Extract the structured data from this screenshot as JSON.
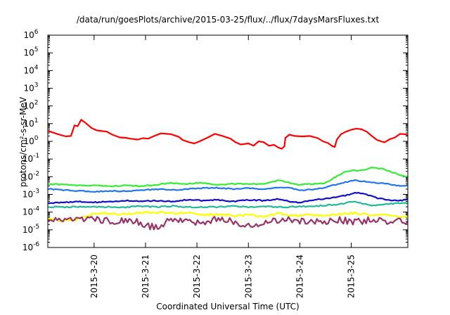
{
  "chart_data": {
    "type": "line",
    "title": "/data/run/goesPlots/archive/2015-03-25/flux/../flux/7daysMarsFluxes.txt",
    "xlabel": "Coordinated Universal Time (UTC)",
    "ylabel": "protons/cm²-s-sr-MeV",
    "yscale": "log",
    "ylim_exp": [
      -6,
      6
    ],
    "x_ticks": [
      {
        "label": "2015-3-20",
        "day": 1
      },
      {
        "label": "2015-3-21",
        "day": 2
      },
      {
        "label": "2015-3-22",
        "day": 3
      },
      {
        "label": "2015-3-23",
        "day": 4
      },
      {
        "label": "2015-3-24",
        "day": 5
      },
      {
        "label": "2015-3-25",
        "day": 6
      }
    ],
    "xlim_day": [
      0.1,
      7.1
    ],
    "series": [
      {
        "color": "#ff0000",
        "noise": 0,
        "points": [
          [
            0.1,
            0.6
          ],
          [
            0.3,
            0.4
          ],
          [
            0.45,
            0.28
          ],
          [
            0.55,
            0.3
          ],
          [
            0.62,
            0.9
          ],
          [
            0.68,
            0.85
          ],
          [
            0.75,
            1.22
          ],
          [
            0.85,
            1.0
          ],
          [
            0.95,
            0.75
          ],
          [
            1.05,
            0.62
          ],
          [
            1.15,
            0.58
          ],
          [
            1.25,
            0.55
          ],
          [
            1.35,
            0.38
          ],
          [
            1.5,
            0.22
          ],
          [
            1.62,
            0.2
          ],
          [
            1.7,
            0.15
          ],
          [
            1.85,
            0.1
          ],
          [
            1.95,
            0.18
          ],
          [
            2.05,
            0.15
          ],
          [
            2.15,
            0.28
          ],
          [
            2.3,
            0.45
          ],
          [
            2.5,
            0.4
          ],
          [
            2.65,
            0.25
          ],
          [
            2.72,
            0.08
          ],
          [
            2.85,
            -0.05
          ],
          [
            2.95,
            -0.12
          ],
          [
            3.05,
            0.0
          ],
          [
            3.2,
            0.2
          ],
          [
            3.35,
            0.42
          ],
          [
            3.5,
            0.3
          ],
          [
            3.65,
            0.15
          ],
          [
            3.75,
            -0.05
          ],
          [
            3.85,
            -0.18
          ],
          [
            4.0,
            -0.12
          ],
          [
            4.1,
            -0.25
          ],
          [
            4.2,
            0.0
          ],
          [
            4.3,
            -0.05
          ],
          [
            4.4,
            -0.25
          ],
          [
            4.5,
            -0.2
          ],
          [
            4.58,
            -0.35
          ],
          [
            4.65,
            -0.42
          ],
          [
            4.7,
            -0.28
          ],
          [
            4.72,
            0.2
          ],
          [
            4.8,
            0.38
          ],
          [
            4.9,
            0.3
          ],
          [
            5.05,
            0.28
          ],
          [
            5.2,
            0.3
          ],
          [
            5.35,
            0.18
          ],
          [
            5.45,
            0.0
          ],
          [
            5.55,
            -0.1
          ],
          [
            5.62,
            -0.25
          ],
          [
            5.68,
            -0.32
          ],
          [
            5.72,
            0.1
          ],
          [
            5.8,
            0.4
          ],
          [
            5.9,
            0.55
          ],
          [
            6.0,
            0.65
          ],
          [
            6.1,
            0.72
          ],
          [
            6.2,
            0.68
          ],
          [
            6.3,
            0.55
          ],
          [
            6.4,
            0.3
          ],
          [
            6.5,
            0.08
          ],
          [
            6.6,
            -0.02
          ],
          [
            6.65,
            -0.05
          ],
          [
            6.75,
            0.12
          ],
          [
            6.85,
            0.22
          ],
          [
            6.95,
            0.42
          ],
          [
            7.05,
            0.4
          ],
          [
            7.1,
            0.35
          ]
        ]
      },
      {
        "color": "#33ee33",
        "noise": 0.03,
        "points": [
          [
            0.1,
            -2.4
          ],
          [
            0.4,
            -2.45
          ],
          [
            0.7,
            -2.5
          ],
          [
            1.0,
            -2.48
          ],
          [
            1.3,
            -2.55
          ],
          [
            1.6,
            -2.48
          ],
          [
            1.9,
            -2.55
          ],
          [
            2.2,
            -2.45
          ],
          [
            2.5,
            -2.35
          ],
          [
            2.8,
            -2.4
          ],
          [
            3.1,
            -2.35
          ],
          [
            3.4,
            -2.45
          ],
          [
            3.7,
            -2.4
          ],
          [
            4.0,
            -2.42
          ],
          [
            4.3,
            -2.4
          ],
          [
            4.6,
            -2.2
          ],
          [
            4.75,
            -2.3
          ],
          [
            5.0,
            -2.45
          ],
          [
            5.3,
            -2.4
          ],
          [
            5.5,
            -2.35
          ],
          [
            5.7,
            -2.0
          ],
          [
            5.9,
            -1.7
          ],
          [
            6.0,
            -1.65
          ],
          [
            6.2,
            -1.65
          ],
          [
            6.4,
            -1.5
          ],
          [
            6.6,
            -1.55
          ],
          [
            6.8,
            -1.75
          ],
          [
            7.0,
            -1.95
          ],
          [
            7.1,
            -2.0
          ]
        ]
      },
      {
        "color": "#2277ee",
        "noise": 0.03,
        "points": [
          [
            0.1,
            -2.7
          ],
          [
            0.4,
            -2.75
          ],
          [
            0.7,
            -2.8
          ],
          [
            1.0,
            -2.85
          ],
          [
            1.3,
            -2.8
          ],
          [
            1.6,
            -2.82
          ],
          [
            1.9,
            -2.78
          ],
          [
            2.2,
            -2.7
          ],
          [
            2.5,
            -2.75
          ],
          [
            2.8,
            -2.7
          ],
          [
            3.1,
            -2.65
          ],
          [
            3.4,
            -2.62
          ],
          [
            3.7,
            -2.7
          ],
          [
            4.0,
            -2.65
          ],
          [
            4.3,
            -2.7
          ],
          [
            4.6,
            -2.6
          ],
          [
            4.8,
            -2.62
          ],
          [
            5.0,
            -2.78
          ],
          [
            5.3,
            -2.7
          ],
          [
            5.5,
            -2.6
          ],
          [
            5.7,
            -2.45
          ],
          [
            5.9,
            -2.3
          ],
          [
            6.1,
            -2.2
          ],
          [
            6.3,
            -2.3
          ],
          [
            6.5,
            -2.35
          ],
          [
            6.7,
            -2.4
          ],
          [
            6.9,
            -2.5
          ],
          [
            7.1,
            -2.5
          ]
        ]
      },
      {
        "color": "#1111cc",
        "noise": 0.03,
        "points": [
          [
            0.1,
            -3.5
          ],
          [
            0.4,
            -3.45
          ],
          [
            0.7,
            -3.4
          ],
          [
            1.0,
            -3.45
          ],
          [
            1.3,
            -3.4
          ],
          [
            1.6,
            -3.35
          ],
          [
            1.9,
            -3.4
          ],
          [
            2.2,
            -3.35
          ],
          [
            2.5,
            -3.4
          ],
          [
            2.8,
            -3.3
          ],
          [
            3.1,
            -3.35
          ],
          [
            3.4,
            -3.3
          ],
          [
            3.7,
            -3.4
          ],
          [
            4.0,
            -3.3
          ],
          [
            4.3,
            -3.35
          ],
          [
            4.6,
            -3.25
          ],
          [
            4.8,
            -3.4
          ],
          [
            5.0,
            -3.45
          ],
          [
            5.3,
            -3.3
          ],
          [
            5.6,
            -3.2
          ],
          [
            5.9,
            -3.05
          ],
          [
            6.1,
            -2.9
          ],
          [
            6.3,
            -3.0
          ],
          [
            6.5,
            -3.2
          ],
          [
            6.7,
            -3.3
          ],
          [
            6.9,
            -3.35
          ],
          [
            7.1,
            -3.3
          ]
        ]
      },
      {
        "color": "#22bb99",
        "noise": 0.04,
        "points": [
          [
            0.1,
            -3.7
          ],
          [
            0.4,
            -3.72
          ],
          [
            0.7,
            -3.7
          ],
          [
            1.0,
            -3.72
          ],
          [
            1.3,
            -3.7
          ],
          [
            1.6,
            -3.72
          ],
          [
            1.9,
            -3.68
          ],
          [
            2.2,
            -3.7
          ],
          [
            2.5,
            -3.65
          ],
          [
            2.8,
            -3.7
          ],
          [
            3.1,
            -3.72
          ],
          [
            3.4,
            -3.7
          ],
          [
            3.7,
            -3.65
          ],
          [
            4.0,
            -3.72
          ],
          [
            4.3,
            -3.7
          ],
          [
            4.6,
            -3.72
          ],
          [
            4.9,
            -3.7
          ],
          [
            5.2,
            -3.68
          ],
          [
            5.5,
            -3.62
          ],
          [
            5.8,
            -3.55
          ],
          [
            6.0,
            -3.4
          ],
          [
            6.2,
            -3.5
          ],
          [
            6.4,
            -3.62
          ],
          [
            6.6,
            -3.6
          ],
          [
            6.8,
            -3.52
          ],
          [
            7.1,
            -3.5
          ]
        ]
      },
      {
        "color": "#ffff00",
        "noise": 0.07,
        "points": [
          [
            0.1,
            -4.4
          ],
          [
            0.4,
            -4.5
          ],
          [
            0.7,
            -4.4
          ],
          [
            1.0,
            -4.1
          ],
          [
            1.3,
            -4.05
          ],
          [
            1.6,
            -4.15
          ],
          [
            1.9,
            -4.05
          ],
          [
            2.2,
            -4.0
          ],
          [
            2.5,
            -4.05
          ],
          [
            2.8,
            -4.0
          ],
          [
            3.1,
            -4.2
          ],
          [
            3.4,
            -4.1
          ],
          [
            3.7,
            -4.2
          ],
          [
            4.0,
            -4.15
          ],
          [
            4.3,
            -4.25
          ],
          [
            4.6,
            -4.05
          ],
          [
            4.9,
            -4.2
          ],
          [
            5.2,
            -4.15
          ],
          [
            5.5,
            -4.2
          ],
          [
            5.8,
            -4.1
          ],
          [
            6.1,
            -4.05
          ],
          [
            6.4,
            -4.2
          ],
          [
            6.7,
            -4.15
          ],
          [
            7.1,
            -4.3
          ]
        ]
      },
      {
        "color": "#993366",
        "noise": 0.2,
        "points": [
          [
            0.1,
            -4.45
          ],
          [
            0.4,
            -4.5
          ],
          [
            0.7,
            -4.45
          ],
          [
            1.0,
            -4.4
          ],
          [
            1.3,
            -4.5
          ],
          [
            1.6,
            -4.45
          ],
          [
            1.9,
            -4.6
          ],
          [
            2.1,
            -4.85
          ],
          [
            2.3,
            -4.8
          ],
          [
            2.5,
            -4.4
          ],
          [
            2.8,
            -4.45
          ],
          [
            3.1,
            -4.6
          ],
          [
            3.4,
            -4.4
          ],
          [
            3.7,
            -4.5
          ],
          [
            4.0,
            -4.75
          ],
          [
            4.3,
            -4.6
          ],
          [
            4.6,
            -4.5
          ],
          [
            4.9,
            -4.45
          ],
          [
            5.2,
            -4.55
          ],
          [
            5.5,
            -4.5
          ],
          [
            5.8,
            -4.45
          ],
          [
            6.1,
            -4.55
          ],
          [
            6.4,
            -4.4
          ],
          [
            6.7,
            -4.5
          ],
          [
            7.1,
            -4.5
          ]
        ]
      }
    ]
  }
}
